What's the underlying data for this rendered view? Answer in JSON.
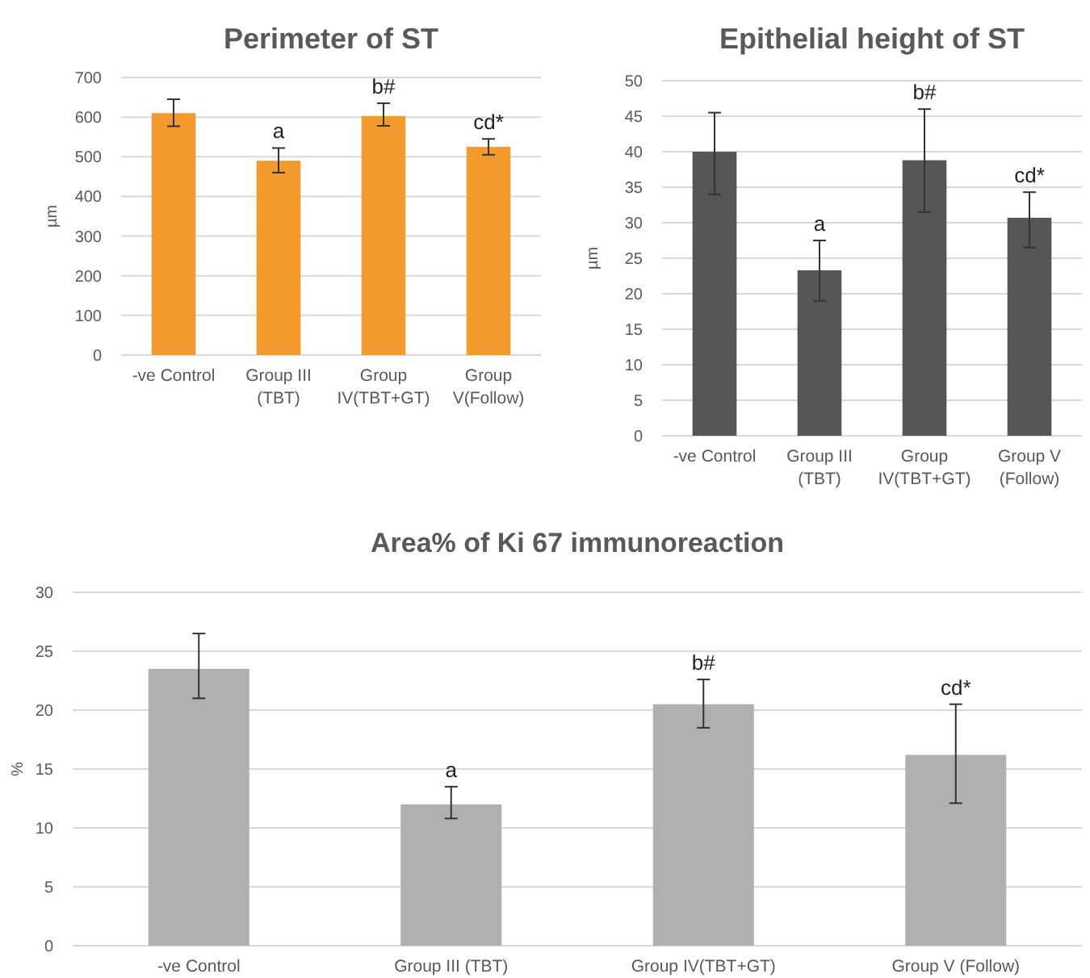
{
  "chart_data": [
    {
      "type": "bar",
      "title": "Perimeter of ST",
      "ylabel": "µm",
      "categories": [
        "-ve Control",
        "Group III\n(TBT)",
        "Group\nIV(TBT+GT)",
        "Group\nV(Follow)"
      ],
      "values": [
        610,
        490,
        603,
        525
      ],
      "errors": [
        [
          577,
          645
        ],
        [
          460,
          522
        ],
        [
          578,
          635
        ],
        [
          505,
          545
        ]
      ],
      "color": "#f39a2e",
      "ylim": [
        0,
        700
      ],
      "yticks": [
        0,
        100,
        200,
        300,
        400,
        500,
        600,
        700
      ],
      "grid": "y",
      "annotations": [
        {
          "text": "a",
          "x": "Group III\n(TBT)",
          "y": 522
        },
        {
          "text": "b#",
          "x": "Group\nIV(TBT+GT)",
          "y": 635
        },
        {
          "text": "cd*",
          "x": "Group\nV(Follow)",
          "y": 545
        }
      ]
    },
    {
      "type": "bar",
      "title": "Epithelial  height of ST",
      "ylabel": "µm",
      "categories": [
        "-ve Control",
        "Group III\n(TBT)",
        "Group\nIV(TBT+GT)",
        "Group V\n(Follow)"
      ],
      "values": [
        40,
        23.3,
        38.8,
        30.7
      ],
      "errors": [
        [
          34,
          45.5
        ],
        [
          19,
          27.5
        ],
        [
          31.5,
          46
        ],
        [
          26.5,
          34.3
        ]
      ],
      "color": "#555555",
      "ylim": [
        0,
        50
      ],
      "yticks": [
        0,
        5,
        10,
        15,
        20,
        25,
        30,
        35,
        40,
        45,
        50
      ],
      "grid": "y",
      "annotations": [
        {
          "text": "a",
          "x": "Group III\n(TBT)",
          "y": 27.5
        },
        {
          "text": "b#",
          "x": "Group\nIV(TBT+GT)",
          "y": 46
        },
        {
          "text": "cd*",
          "x": "Group V\n(Follow)",
          "y": 34.3
        }
      ]
    },
    {
      "type": "bar",
      "title": "Area%  of Ki 67 immunoreaction",
      "ylabel": "%",
      "categories": [
        "-ve Control",
        "Group III (TBT)",
        "Group IV(TBT+GT)",
        "Group V (Follow)"
      ],
      "values": [
        23.5,
        12,
        20.5,
        16.2
      ],
      "errors": [
        [
          21,
          26.5
        ],
        [
          10.8,
          13.5
        ],
        [
          18.5,
          22.6
        ],
        [
          12.1,
          20.5
        ]
      ],
      "color": "#b0b0b0",
      "ylim": [
        0,
        30
      ],
      "yticks": [
        0,
        5,
        10,
        15,
        20,
        25,
        30
      ],
      "grid": "y",
      "annotations": [
        {
          "text": "a",
          "x": "Group III (TBT)",
          "y": 13.5
        },
        {
          "text": "b#",
          "x": "Group IV(TBT+GT)",
          "y": 22.6
        },
        {
          "text": "cd*",
          "x": "Group V (Follow)",
          "y": 20.5
        }
      ]
    }
  ]
}
